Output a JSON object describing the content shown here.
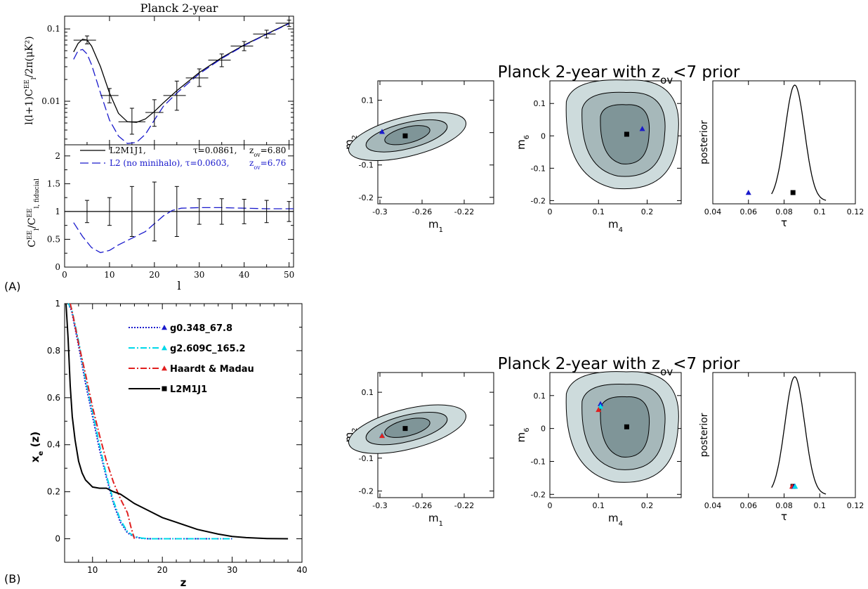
{
  "colors": {
    "black": "#000000",
    "blue": "#1a1acc",
    "cyan": "#00d8e8",
    "red": "#e02020",
    "contour_dark": "#7f9598",
    "contour_mid": "#a6b8ba",
    "contour_light": "#cddbdc"
  },
  "panels": {
    "a_label": "(A)",
    "b_label": "(B)"
  },
  "chart_data": [
    {
      "type": "line",
      "title": "Planck 2-year",
      "xlabel": "l",
      "top": {
        "ylabel": "l(l+1)C",
        "ylabel_sup": "EE",
        "ylabel_sub": "l",
        "ylabel_rest": "/2π(μK²)",
        "yscale": "log",
        "ylim": [
          0.0025,
          0.15
        ],
        "yticks": [
          {
            "v": 0.01,
            "label": "0.01"
          },
          {
            "v": 0.1,
            "label": "0.1"
          }
        ],
        "series": [
          {
            "name": "L2M1J1",
            "color": "black",
            "style": "solid",
            "x": [
              2,
              3,
              4,
              5,
              6,
              8,
              10,
              12,
              14,
              16,
              18,
              20,
              22,
              25,
              30,
              35,
              40,
              45,
              50
            ],
            "y": [
              0.048,
              0.063,
              0.072,
              0.07,
              0.058,
              0.03,
              0.013,
              0.0068,
              0.0052,
              0.0051,
              0.0057,
              0.0072,
              0.0095,
              0.014,
              0.025,
              0.04,
              0.06,
              0.085,
              0.12
            ]
          },
          {
            "name": "L2 (no minihalo)",
            "color": "blue",
            "style": "dashed",
            "x": [
              2,
              3,
              4,
              5,
              6,
              8,
              10,
              12,
              14,
              16,
              18,
              20,
              22,
              25,
              30,
              35,
              40,
              45,
              50
            ],
            "y": [
              0.038,
              0.05,
              0.052,
              0.045,
              0.032,
              0.013,
              0.0055,
              0.0033,
              0.0026,
              0.0027,
              0.0035,
              0.0055,
              0.0085,
              0.013,
              0.024,
              0.039,
              0.059,
              0.084,
              0.118
            ]
          }
        ],
        "errorbars": [
          {
            "x": 5,
            "y": 0.07,
            "xlo": 2,
            "xhi": 7,
            "ylo": 0.062,
            "yhi": 0.08
          },
          {
            "x": 10,
            "y": 0.012,
            "xlo": 8,
            "xhi": 12,
            "ylo": 0.0095,
            "yhi": 0.015
          },
          {
            "x": 15,
            "y": 0.0052,
            "xlo": 12,
            "xhi": 18,
            "ylo": 0.0035,
            "yhi": 0.008
          },
          {
            "x": 20,
            "y": 0.007,
            "xlo": 18,
            "xhi": 22,
            "ylo": 0.0045,
            "yhi": 0.0105
          },
          {
            "x": 25,
            "y": 0.012,
            "xlo": 22,
            "xhi": 27,
            "ylo": 0.0075,
            "yhi": 0.019
          },
          {
            "x": 30,
            "y": 0.021,
            "xlo": 27,
            "xhi": 32,
            "ylo": 0.016,
            "yhi": 0.028
          },
          {
            "x": 35,
            "y": 0.037,
            "xlo": 32,
            "xhi": 37,
            "ylo": 0.03,
            "yhi": 0.045
          },
          {
            "x": 40,
            "y": 0.058,
            "xlo": 37,
            "xhi": 42,
            "ylo": 0.05,
            "yhi": 0.067
          },
          {
            "x": 45,
            "y": 0.085,
            "xlo": 42,
            "xhi": 47,
            "ylo": 0.075,
            "yhi": 0.096
          },
          {
            "x": 50,
            "y": 0.12,
            "xlo": 47,
            "xhi": 51,
            "ylo": 0.108,
            "yhi": 0.132
          }
        ]
      },
      "bottom": {
        "ylabel_pre": "C",
        "ylabel_sup1": "EE",
        "ylabel_sub1": "l",
        "ylabel_mid": "/C",
        "ylabel_sup2": "EE",
        "ylabel_sub2": "l, fiducial",
        "ylim": [
          0,
          2.2
        ],
        "yticks": [
          0,
          0.5,
          1,
          1.5,
          2
        ],
        "xlim": [
          0,
          51
        ],
        "xticks": [
          0,
          10,
          20,
          30,
          40,
          50
        ],
        "legend": [
          {
            "name": "L2M1J1,",
            "color": "black",
            "style": "solid",
            "tau_text": "τ=0.0861,",
            "z_text": "z",
            "z_sub": "ov",
            "z_val": "=6.80"
          },
          {
            "name": "L2 (no minihalo),",
            "color": "blue",
            "style": "dashed",
            "tau_text": "τ=0.0603,",
            "z_text": "z",
            "z_sub": "ov",
            "z_val": "=6.76"
          }
        ],
        "series": [
          {
            "name": "L2M1J1",
            "color": "black",
            "style": "solid",
            "x": [
              0,
              51
            ],
            "y": [
              1,
              1
            ]
          },
          {
            "name": "L2 (no minihalo)",
            "color": "blue",
            "style": "dashed",
            "x": [
              2,
              4,
              6,
              8,
              10,
              12,
              15,
              18,
              20,
              22,
              24,
              26,
              30,
              35,
              40,
              45,
              51
            ],
            "y": [
              0.8,
              0.55,
              0.35,
              0.26,
              0.3,
              0.4,
              0.52,
              0.64,
              0.78,
              0.92,
              1.02,
              1.06,
              1.07,
              1.07,
              1.06,
              1.05,
              1.05
            ]
          }
        ],
        "errorbars": [
          {
            "x": 5,
            "ylo": 0.8,
            "yhi": 1.2
          },
          {
            "x": 10,
            "ylo": 0.75,
            "yhi": 1.25
          },
          {
            "x": 15,
            "ylo": 0.55,
            "yhi": 1.45
          },
          {
            "x": 20,
            "ylo": 0.47,
            "yhi": 1.53
          },
          {
            "x": 25,
            "ylo": 0.55,
            "yhi": 1.45
          },
          {
            "x": 30,
            "ylo": 0.77,
            "yhi": 1.23
          },
          {
            "x": 35,
            "ylo": 0.77,
            "yhi": 1.23
          },
          {
            "x": 40,
            "ylo": 0.78,
            "yhi": 1.22
          },
          {
            "x": 45,
            "ylo": 0.8,
            "yhi": 1.2
          },
          {
            "x": 50,
            "ylo": 0.82,
            "yhi": 1.18
          }
        ]
      }
    },
    {
      "type": "line",
      "xlabel": "z",
      "ylabel": "x",
      "ylabel_sub": "e",
      "ylabel_rest": " (z)",
      "xlim": [
        6,
        40
      ],
      "ylim": [
        -0.1,
        1.0
      ],
      "xticks": [
        10,
        20,
        30,
        40
      ],
      "yticks": [
        0,
        0.2,
        0.4,
        0.6,
        0.8,
        1
      ],
      "legend": [
        {
          "name": "g0.348_67.8",
          "color": "blue",
          "style": "dotted",
          "marker": "triangle"
        },
        {
          "name": "g2.609C_165.2",
          "color": "cyan",
          "style": "dashdot",
          "marker": "triangle"
        },
        {
          "name": "Haardt & Madau",
          "color": "red",
          "style": "dashdot",
          "marker": "triangle"
        },
        {
          "name": "L2M1J1",
          "color": "black",
          "style": "solid",
          "marker": "square"
        }
      ],
      "series": [
        {
          "name": "g0.348_67.8",
          "color": "blue",
          "style": "dotted",
          "x": [
            6.5,
            7,
            8,
            9,
            10,
            11,
            12,
            13,
            14,
            15,
            16,
            17,
            18,
            20,
            25,
            30
          ],
          "y": [
            1.0,
            0.97,
            0.82,
            0.66,
            0.52,
            0.38,
            0.26,
            0.15,
            0.07,
            0.025,
            0.008,
            0.002,
            0.0,
            0.0,
            0.0,
            0.0
          ]
        },
        {
          "name": "g2.609C_165.2",
          "color": "cyan",
          "style": "dashdot",
          "x": [
            6.5,
            7,
            8,
            9,
            10,
            11,
            12,
            13,
            14,
            15,
            16,
            17,
            18,
            20,
            25,
            30
          ],
          "y": [
            1.0,
            0.98,
            0.84,
            0.68,
            0.54,
            0.4,
            0.27,
            0.16,
            0.08,
            0.03,
            0.01,
            0.003,
            0.0,
            0.0,
            0.0,
            0.0
          ]
        },
        {
          "name": "Haardt & Madau",
          "color": "red",
          "style": "dashdot",
          "x": [
            6.8,
            7.2,
            8,
            9,
            10,
            11,
            12,
            13,
            14,
            15,
            15.5,
            16
          ],
          "y": [
            1.0,
            0.95,
            0.83,
            0.7,
            0.56,
            0.44,
            0.33,
            0.24,
            0.17,
            0.11,
            0.05,
            0.0
          ]
        },
        {
          "name": "L2M1J1",
          "color": "black",
          "style": "solid",
          "x": [
            6.2,
            6.5,
            6.8,
            7.1,
            7.5,
            8,
            8.5,
            9,
            10,
            11,
            12,
            13,
            14,
            15,
            16,
            18,
            20,
            22,
            25,
            28,
            30,
            32,
            35,
            38
          ],
          "y": [
            1.0,
            0.85,
            0.65,
            0.52,
            0.42,
            0.33,
            0.28,
            0.25,
            0.22,
            0.215,
            0.215,
            0.2,
            0.19,
            0.17,
            0.15,
            0.12,
            0.09,
            0.07,
            0.04,
            0.02,
            0.01,
            0.005,
            0.001,
            0.0
          ]
        }
      ]
    },
    {
      "type": "contour",
      "title": "Planck 2-year with z",
      "title_sub": "ov",
      "title_rest": "<7 prior",
      "subplots": [
        {
          "xlabel": "m",
          "xlabel_sub": "1",
          "ylabel": "m",
          "ylabel_sub": "2",
          "xlim": [
            -0.302,
            -0.192
          ],
          "ylim": [
            -0.22,
            0.16
          ],
          "xticks": [
            {
              "v": -0.3,
              "label": "-0.3"
            },
            {
              "v": -0.26,
              "label": "-0.26"
            },
            {
              "v": -0.22,
              "label": "-0.22"
            }
          ],
          "yticks": [
            {
              "v": -0.2,
              "label": "-0.2"
            },
            {
              "v": -0.1,
              "label": "-0.1"
            },
            {
              "v": 0,
              "label": "0"
            },
            {
              "v": 0.1,
              "label": "0.1"
            }
          ],
          "best_fit": {
            "x": -0.276,
            "y": -0.01
          },
          "markers": [
            {
              "color": "blue",
              "x": -0.298,
              "y": 0.003
            }
          ]
        },
        {
          "xlabel": "m",
          "xlabel_sub": "4",
          "ylabel": "m",
          "ylabel_sub": "6",
          "xlim": [
            0,
            0.27
          ],
          "ylim": [
            -0.21,
            0.17
          ],
          "xticks": [
            {
              "v": 0,
              "label": "0"
            },
            {
              "v": 0.1,
              "label": "0.1"
            },
            {
              "v": 0.2,
              "label": "0.2"
            }
          ],
          "yticks": [
            {
              "v": -0.2,
              "label": "-0.2"
            },
            {
              "v": -0.1,
              "label": "-0.1"
            },
            {
              "v": 0,
              "label": "0"
            },
            {
              "v": 0.1,
              "label": "0.1"
            }
          ],
          "best_fit": {
            "x": 0.158,
            "y": 0.005
          },
          "markers": [
            {
              "color": "blue",
              "x": 0.19,
              "y": 0.022
            }
          ]
        },
        {
          "xlabel": "τ",
          "ylabel": "posterior",
          "xlim": [
            0.04,
            0.12
          ],
          "xticks": [
            {
              "v": 0.04,
              "label": "0.04"
            },
            {
              "v": 0.06,
              "label": "0.06"
            },
            {
              "v": 0.08,
              "label": "0.08"
            },
            {
              "v": 0.1,
              "label": "0.1"
            },
            {
              "v": 0.12,
              "label": "0.12"
            }
          ],
          "peak": 0.086,
          "best_fit": {
            "x": 0.085
          },
          "markers": [
            {
              "color": "blue",
              "x": 0.06
            }
          ]
        }
      ]
    },
    {
      "type": "contour",
      "title": "Planck 2-year with z",
      "title_sub": "ov",
      "title_rest": "<7 prior",
      "subplots": [
        {
          "xlabel": "m",
          "xlabel_sub": "1",
          "ylabel": "m",
          "ylabel_sub": "2",
          "xlim": [
            -0.302,
            -0.192
          ],
          "ylim": [
            -0.22,
            0.16
          ],
          "xticks": [
            {
              "v": -0.3,
              "label": "-0.3"
            },
            {
              "v": -0.26,
              "label": "-0.26"
            },
            {
              "v": -0.22,
              "label": "-0.22"
            }
          ],
          "yticks": [
            {
              "v": -0.2,
              "label": "-0.2"
            },
            {
              "v": -0.1,
              "label": "-0.1"
            },
            {
              "v": 0,
              "label": "0"
            },
            {
              "v": 0.1,
              "label": "0.1"
            }
          ],
          "best_fit": {
            "x": -0.276,
            "y": -0.01
          },
          "markers": [
            {
              "color": "blue",
              "x": -0.298,
              "y": -0.03
            },
            {
              "color": "cyan",
              "x": -0.298,
              "y": -0.03
            },
            {
              "color": "red",
              "x": -0.298,
              "y": -0.032
            }
          ]
        },
        {
          "xlabel": "m",
          "xlabel_sub": "4",
          "ylabel": "m",
          "ylabel_sub": "6",
          "xlim": [
            0,
            0.27
          ],
          "ylim": [
            -0.21,
            0.17
          ],
          "xticks": [
            {
              "v": 0,
              "label": "0"
            },
            {
              "v": 0.1,
              "label": "0.1"
            },
            {
              "v": 0.2,
              "label": "0.2"
            }
          ],
          "yticks": [
            {
              "v": -0.2,
              "label": "-0.2"
            },
            {
              "v": -0.1,
              "label": "-0.1"
            },
            {
              "v": 0,
              "label": "0"
            },
            {
              "v": 0.1,
              "label": "0.1"
            }
          ],
          "best_fit": {
            "x": 0.158,
            "y": 0.005
          },
          "markers": [
            {
              "color": "blue",
              "x": 0.104,
              "y": 0.075
            },
            {
              "color": "cyan",
              "x": 0.104,
              "y": 0.067
            },
            {
              "color": "red",
              "x": 0.1,
              "y": 0.057
            }
          ]
        },
        {
          "xlabel": "τ",
          "ylabel": "posterior",
          "xlim": [
            0.04,
            0.12
          ],
          "xticks": [
            {
              "v": 0.04,
              "label": "0.04"
            },
            {
              "v": 0.06,
              "label": "0.06"
            },
            {
              "v": 0.08,
              "label": "0.08"
            },
            {
              "v": 0.1,
              "label": "0.1"
            },
            {
              "v": 0.12,
              "label": "0.12"
            }
          ],
          "peak": 0.086,
          "best_fit": {
            "x": 0.085
          },
          "markers": [
            {
              "color": "red",
              "x": 0.0845
            },
            {
              "color": "blue",
              "x": 0.0858
            },
            {
              "color": "cyan",
              "x": 0.0862
            }
          ]
        }
      ]
    }
  ]
}
